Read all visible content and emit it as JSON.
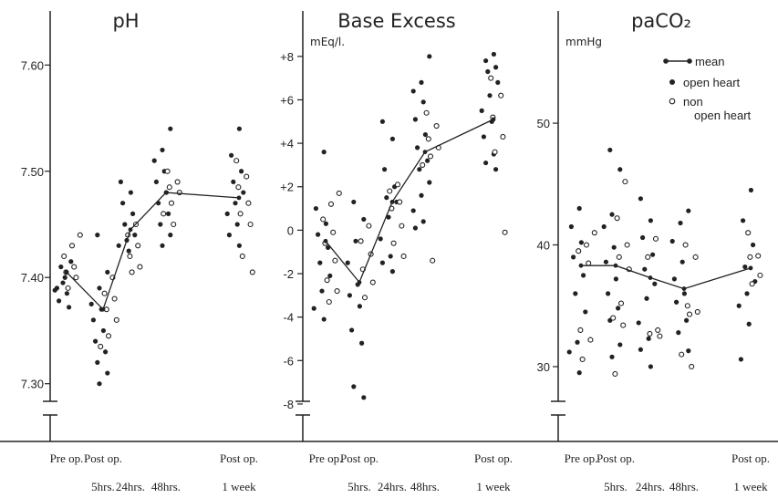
{
  "chart_data": [
    {
      "type": "scatter",
      "title": "pH",
      "unit": "",
      "ylim": [
        7.28,
        7.62
      ],
      "y_ticks": [
        7.3,
        7.4,
        7.5,
        7.6
      ],
      "y_tick_labels": [
        "7.30",
        "7.40",
        "7.50",
        "7.60"
      ],
      "mean_line": {
        "x": [
          0,
          1,
          2,
          3,
          4
        ],
        "y": [
          7.405,
          7.37,
          7.445,
          7.48,
          7.475
        ]
      },
      "series": [
        {
          "name": "open heart",
          "points": [
            [
              0,
              7.4
            ],
            [
              0,
              7.39
            ],
            [
              0,
              7.385
            ],
            [
              0,
              7.378
            ],
            [
              0,
              7.372
            ],
            [
              0,
              7.41
            ],
            [
              0,
              7.415
            ],
            [
              0,
              7.395
            ],
            [
              0,
              7.388
            ],
            [
              1,
              7.44
            ],
            [
              1,
              7.405
            ],
            [
              1,
              7.39
            ],
            [
              1,
              7.375
            ],
            [
              1,
              7.37
            ],
            [
              1,
              7.36
            ],
            [
              1,
              7.35
            ],
            [
              1,
              7.34
            ],
            [
              1,
              7.33
            ],
            [
              1,
              7.32
            ],
            [
              1,
              7.31
            ],
            [
              1,
              7.3
            ],
            [
              2,
              7.49
            ],
            [
              2,
              7.48
            ],
            [
              2,
              7.47
            ],
            [
              2,
              7.46
            ],
            [
              2,
              7.45
            ],
            [
              2,
              7.44
            ],
            [
              2,
              7.435
            ],
            [
              2,
              7.43
            ],
            [
              2,
              7.425
            ],
            [
              3,
              7.54
            ],
            [
              3,
              7.52
            ],
            [
              3,
              7.51
            ],
            [
              3,
              7.5
            ],
            [
              3,
              7.49
            ],
            [
              3,
              7.48
            ],
            [
              3,
              7.47
            ],
            [
              3,
              7.46
            ],
            [
              3,
              7.45
            ],
            [
              3,
              7.44
            ],
            [
              3,
              7.43
            ],
            [
              4,
              7.54
            ],
            [
              4,
              7.515
            ],
            [
              4,
              7.5
            ],
            [
              4,
              7.49
            ],
            [
              4,
              7.48
            ],
            [
              4,
              7.47
            ],
            [
              4,
              7.46
            ],
            [
              4,
              7.45
            ],
            [
              4,
              7.44
            ],
            [
              4,
              7.43
            ]
          ]
        },
        {
          "name": "non open heart",
          "points": [
            [
              0,
              7.44
            ],
            [
              0,
              7.43
            ],
            [
              0,
              7.42
            ],
            [
              0,
              7.41
            ],
            [
              0,
              7.405
            ],
            [
              0,
              7.4
            ],
            [
              0,
              7.39
            ],
            [
              1,
              7.4
            ],
            [
              1,
              7.385
            ],
            [
              1,
              7.38
            ],
            [
              1,
              7.37
            ],
            [
              1,
              7.36
            ],
            [
              1,
              7.345
            ],
            [
              1,
              7.335
            ],
            [
              2,
              7.45
            ],
            [
              2,
              7.44
            ],
            [
              2,
              7.43
            ],
            [
              2,
              7.42
            ],
            [
              2,
              7.41
            ],
            [
              2,
              7.405
            ],
            [
              3,
              7.5
            ],
            [
              3,
              7.49
            ],
            [
              3,
              7.485
            ],
            [
              3,
              7.48
            ],
            [
              3,
              7.47
            ],
            [
              3,
              7.46
            ],
            [
              3,
              7.45
            ],
            [
              4,
              7.51
            ],
            [
              4,
              7.495
            ],
            [
              4,
              7.485
            ],
            [
              4,
              7.47
            ],
            [
              4,
              7.46
            ],
            [
              4,
              7.45
            ],
            [
              4,
              7.42
            ],
            [
              4,
              7.405
            ]
          ]
        }
      ]
    },
    {
      "type": "scatter",
      "title": "Base Excess",
      "unit": "mEq/l.",
      "ylim": [
        -8.8,
        9
      ],
      "y_ticks": [
        8,
        6,
        4,
        2,
        0,
        -2,
        -4,
        -6,
        -8
      ],
      "y_tick_labels": [
        "+8",
        "+6",
        "+4",
        "+2",
        "0",
        "-2",
        "-4",
        "-6",
        "-8"
      ],
      "mean_line": {
        "x": [
          0,
          1,
          2,
          3,
          4
        ],
        "y": [
          -0.5,
          -2.4,
          1.3,
          3.6,
          5.1
        ]
      },
      "series": [
        {
          "name": "open heart",
          "points": [
            [
              0,
              3.6
            ],
            [
              0,
              1.0
            ],
            [
              0,
              0.3
            ],
            [
              0,
              -0.2
            ],
            [
              0,
              -0.8
            ],
            [
              0,
              -1.5
            ],
            [
              0,
              -2.1
            ],
            [
              0,
              -2.8
            ],
            [
              0,
              -3.6
            ],
            [
              0,
              -4.1
            ],
            [
              1,
              1.3
            ],
            [
              1,
              0.5
            ],
            [
              1,
              -0.5
            ],
            [
              1,
              -1.5
            ],
            [
              1,
              -2.5
            ],
            [
              1,
              -3.0
            ],
            [
              1,
              -3.5
            ],
            [
              1,
              -4.6
            ],
            [
              1,
              -5.2
            ],
            [
              1,
              -7.2
            ],
            [
              1,
              -7.7
            ],
            [
              2,
              5.0
            ],
            [
              2,
              4.2
            ],
            [
              2,
              2.8
            ],
            [
              2,
              2.0
            ],
            [
              2,
              1.5
            ],
            [
              2,
              1.3
            ],
            [
              2,
              0.6
            ],
            [
              2,
              -0.4
            ],
            [
              2,
              -1.2
            ],
            [
              2,
              -1.5
            ],
            [
              2,
              -1.9
            ],
            [
              3,
              8.0
            ],
            [
              3,
              6.8
            ],
            [
              3,
              6.4
            ],
            [
              3,
              5.9
            ],
            [
              3,
              5.1
            ],
            [
              3,
              4.4
            ],
            [
              3,
              3.8
            ],
            [
              3,
              3.2
            ],
            [
              3,
              2.8
            ],
            [
              3,
              2.2
            ],
            [
              3,
              1.6
            ],
            [
              3,
              0.9
            ],
            [
              3,
              0.4
            ],
            [
              3,
              0.1
            ],
            [
              4,
              8.1
            ],
            [
              4,
              7.8
            ],
            [
              4,
              7.5
            ],
            [
              4,
              7.3
            ],
            [
              4,
              6.8
            ],
            [
              4,
              6.2
            ],
            [
              4,
              5.5
            ],
            [
              4,
              5.0
            ],
            [
              4,
              4.3
            ],
            [
              4,
              3.5
            ],
            [
              4,
              3.1
            ],
            [
              4,
              2.8
            ]
          ]
        },
        {
          "name": "non open heart",
          "points": [
            [
              0,
              1.7
            ],
            [
              0,
              1.2
            ],
            [
              0,
              0.5
            ],
            [
              0,
              -0.1
            ],
            [
              0,
              -0.6
            ],
            [
              0,
              -1.4
            ],
            [
              0,
              -2.3
            ],
            [
              0,
              -2.8
            ],
            [
              0,
              -3.3
            ],
            [
              1,
              0.2
            ],
            [
              1,
              -0.5
            ],
            [
              1,
              -1.1
            ],
            [
              1,
              -1.8
            ],
            [
              1,
              -2.4
            ],
            [
              1,
              -3.1
            ],
            [
              2,
              2.1
            ],
            [
              2,
              1.8
            ],
            [
              2,
              1.3
            ],
            [
              2,
              1.0
            ],
            [
              2,
              0.2
            ],
            [
              2,
              -0.6
            ],
            [
              2,
              -1.2
            ],
            [
              3,
              5.4
            ],
            [
              3,
              4.8
            ],
            [
              3,
              4.2
            ],
            [
              3,
              3.8
            ],
            [
              3,
              3.4
            ],
            [
              3,
              3.0
            ],
            [
              3,
              -1.4
            ],
            [
              4,
              7.0
            ],
            [
              4,
              6.2
            ],
            [
              4,
              5.2
            ],
            [
              4,
              4.3
            ],
            [
              4,
              3.6
            ],
            [
              4,
              -0.1
            ]
          ]
        }
      ]
    },
    {
      "type": "scatter",
      "title": "paCO₂",
      "unit": "mmHg",
      "ylim": [
        27,
        56
      ],
      "y_ticks": [
        30,
        40,
        50
      ],
      "y_tick_labels": [
        "30",
        "40",
        "50"
      ],
      "mean_line": {
        "x": [
          0,
          1,
          2,
          3,
          4
        ],
        "y": [
          38.3,
          38.3,
          37.3,
          36.4,
          38.1
        ]
      },
      "series": [
        {
          "name": "open heart",
          "points": [
            [
              0,
              43
            ],
            [
              0,
              41.5
            ],
            [
              0,
              40.2
            ],
            [
              0,
              39
            ],
            [
              0,
              37.5
            ],
            [
              0,
              36
            ],
            [
              0,
              34.5
            ],
            [
              0,
              32
            ],
            [
              0,
              31.2
            ],
            [
              0,
              29.5
            ],
            [
              1,
              47.8
            ],
            [
              1,
              46.2
            ],
            [
              1,
              42.5
            ],
            [
              1,
              41.5
            ],
            [
              1,
              39.8
            ],
            [
              1,
              38.6
            ],
            [
              1,
              37.2
            ],
            [
              1,
              36
            ],
            [
              1,
              34.8
            ],
            [
              1,
              33.8
            ],
            [
              1,
              31.8
            ],
            [
              1,
              30.8
            ],
            [
              2,
              43.8
            ],
            [
              2,
              42
            ],
            [
              2,
              40.6
            ],
            [
              2,
              39.2
            ],
            [
              2,
              38
            ],
            [
              2,
              36.8
            ],
            [
              2,
              35.6
            ],
            [
              2,
              33.6
            ],
            [
              2,
              32.3
            ],
            [
              2,
              31.4
            ],
            [
              2,
              30
            ],
            [
              3,
              42.8
            ],
            [
              3,
              41.8
            ],
            [
              3,
              40.3
            ],
            [
              3,
              38.6
            ],
            [
              3,
              37.2
            ],
            [
              3,
              36
            ],
            [
              3,
              35.3
            ],
            [
              3,
              33.8
            ],
            [
              3,
              32.8
            ],
            [
              3,
              31.3
            ],
            [
              4,
              44.5
            ],
            [
              4,
              42
            ],
            [
              4,
              40
            ],
            [
              4,
              38.2
            ],
            [
              4,
              37
            ],
            [
              4,
              36
            ],
            [
              4,
              35
            ],
            [
              4,
              33.5
            ],
            [
              4,
              30.6
            ]
          ]
        },
        {
          "name": "non open heart",
          "points": [
            [
              0,
              41
            ],
            [
              0,
              40
            ],
            [
              0,
              39.5
            ],
            [
              0,
              38.5
            ],
            [
              0,
              33
            ],
            [
              0,
              32.2
            ],
            [
              0,
              30.6
            ],
            [
              1,
              45.2
            ],
            [
              1,
              42.2
            ],
            [
              1,
              40
            ],
            [
              1,
              39
            ],
            [
              1,
              38
            ],
            [
              1,
              35.2
            ],
            [
              1,
              34
            ],
            [
              1,
              33.4
            ],
            [
              1,
              29.4
            ],
            [
              2,
              40.5
            ],
            [
              2,
              39
            ],
            [
              2,
              33
            ],
            [
              2,
              32.7
            ],
            [
              2,
              32.5
            ],
            [
              3,
              40
            ],
            [
              3,
              39
            ],
            [
              3,
              35
            ],
            [
              3,
              34.5
            ],
            [
              3,
              34.3
            ],
            [
              3,
              31
            ],
            [
              3,
              30
            ],
            [
              4,
              41
            ],
            [
              4,
              39.1
            ],
            [
              4,
              39
            ],
            [
              4,
              37.5
            ],
            [
              4,
              36.8
            ]
          ]
        }
      ]
    }
  ],
  "x_axis": {
    "top_labels": [
      "Pre op.",
      "Post op.",
      "",
      "",
      "Post op."
    ],
    "bottom_labels": [
      "",
      "5hrs.",
      "24hrs.",
      "48hrs.",
      "1 week"
    ]
  },
  "legend": [
    {
      "marker": "line",
      "label": "mean"
    },
    {
      "marker": "filled",
      "label": "open heart"
    },
    {
      "marker": "open",
      "label": "non"
    },
    {
      "marker": "none",
      "label": "open heart"
    }
  ]
}
